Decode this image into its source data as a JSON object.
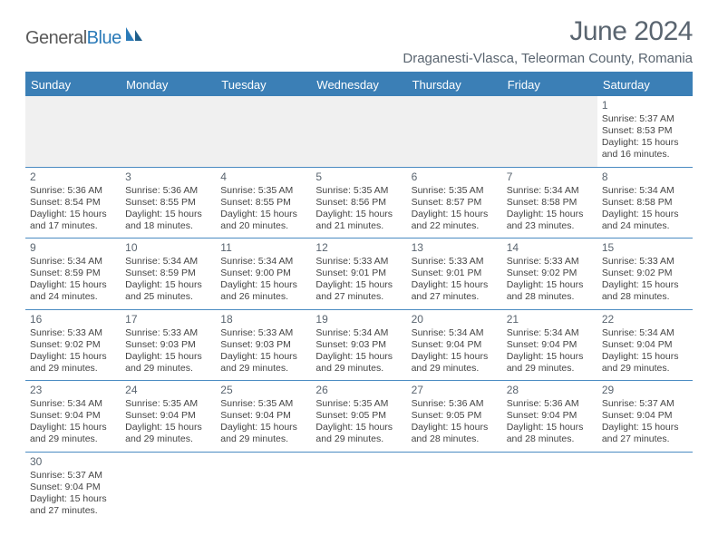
{
  "brand": {
    "general": "General",
    "blue": "Blue"
  },
  "title": "June 2024",
  "location": "Draganesti-Vlasca, Teleorman County, Romania",
  "colors": {
    "header_bg": "#3b7fb6",
    "header_text": "#ffffff",
    "row_border": "#4a8bc2",
    "body_text": "#444444",
    "title_text": "#5a6570",
    "empty_bg": "#f0f0f0"
  },
  "dow": [
    "Sunday",
    "Monday",
    "Tuesday",
    "Wednesday",
    "Thursday",
    "Friday",
    "Saturday"
  ],
  "weeks": [
    [
      null,
      null,
      null,
      null,
      null,
      null,
      {
        "n": "1",
        "sr": "5:37 AM",
        "ss": "8:53 PM",
        "dl": "15 hours",
        "dm": "and 16 minutes."
      }
    ],
    [
      {
        "n": "2",
        "sr": "5:36 AM",
        "ss": "8:54 PM",
        "dl": "15 hours",
        "dm": "and 17 minutes."
      },
      {
        "n": "3",
        "sr": "5:36 AM",
        "ss": "8:55 PM",
        "dl": "15 hours",
        "dm": "and 18 minutes."
      },
      {
        "n": "4",
        "sr": "5:35 AM",
        "ss": "8:55 PM",
        "dl": "15 hours",
        "dm": "and 20 minutes."
      },
      {
        "n": "5",
        "sr": "5:35 AM",
        "ss": "8:56 PM",
        "dl": "15 hours",
        "dm": "and 21 minutes."
      },
      {
        "n": "6",
        "sr": "5:35 AM",
        "ss": "8:57 PM",
        "dl": "15 hours",
        "dm": "and 22 minutes."
      },
      {
        "n": "7",
        "sr": "5:34 AM",
        "ss": "8:58 PM",
        "dl": "15 hours",
        "dm": "and 23 minutes."
      },
      {
        "n": "8",
        "sr": "5:34 AM",
        "ss": "8:58 PM",
        "dl": "15 hours",
        "dm": "and 24 minutes."
      }
    ],
    [
      {
        "n": "9",
        "sr": "5:34 AM",
        "ss": "8:59 PM",
        "dl": "15 hours",
        "dm": "and 24 minutes."
      },
      {
        "n": "10",
        "sr": "5:34 AM",
        "ss": "8:59 PM",
        "dl": "15 hours",
        "dm": "and 25 minutes."
      },
      {
        "n": "11",
        "sr": "5:34 AM",
        "ss": "9:00 PM",
        "dl": "15 hours",
        "dm": "and 26 minutes."
      },
      {
        "n": "12",
        "sr": "5:33 AM",
        "ss": "9:01 PM",
        "dl": "15 hours",
        "dm": "and 27 minutes."
      },
      {
        "n": "13",
        "sr": "5:33 AM",
        "ss": "9:01 PM",
        "dl": "15 hours",
        "dm": "and 27 minutes."
      },
      {
        "n": "14",
        "sr": "5:33 AM",
        "ss": "9:02 PM",
        "dl": "15 hours",
        "dm": "and 28 minutes."
      },
      {
        "n": "15",
        "sr": "5:33 AM",
        "ss": "9:02 PM",
        "dl": "15 hours",
        "dm": "and 28 minutes."
      }
    ],
    [
      {
        "n": "16",
        "sr": "5:33 AM",
        "ss": "9:02 PM",
        "dl": "15 hours",
        "dm": "and 29 minutes."
      },
      {
        "n": "17",
        "sr": "5:33 AM",
        "ss": "9:03 PM",
        "dl": "15 hours",
        "dm": "and 29 minutes."
      },
      {
        "n": "18",
        "sr": "5:33 AM",
        "ss": "9:03 PM",
        "dl": "15 hours",
        "dm": "and 29 minutes."
      },
      {
        "n": "19",
        "sr": "5:34 AM",
        "ss": "9:03 PM",
        "dl": "15 hours",
        "dm": "and 29 minutes."
      },
      {
        "n": "20",
        "sr": "5:34 AM",
        "ss": "9:04 PM",
        "dl": "15 hours",
        "dm": "and 29 minutes."
      },
      {
        "n": "21",
        "sr": "5:34 AM",
        "ss": "9:04 PM",
        "dl": "15 hours",
        "dm": "and 29 minutes."
      },
      {
        "n": "22",
        "sr": "5:34 AM",
        "ss": "9:04 PM",
        "dl": "15 hours",
        "dm": "and 29 minutes."
      }
    ],
    [
      {
        "n": "23",
        "sr": "5:34 AM",
        "ss": "9:04 PM",
        "dl": "15 hours",
        "dm": "and 29 minutes."
      },
      {
        "n": "24",
        "sr": "5:35 AM",
        "ss": "9:04 PM",
        "dl": "15 hours",
        "dm": "and 29 minutes."
      },
      {
        "n": "25",
        "sr": "5:35 AM",
        "ss": "9:04 PM",
        "dl": "15 hours",
        "dm": "and 29 minutes."
      },
      {
        "n": "26",
        "sr": "5:35 AM",
        "ss": "9:05 PM",
        "dl": "15 hours",
        "dm": "and 29 minutes."
      },
      {
        "n": "27",
        "sr": "5:36 AM",
        "ss": "9:05 PM",
        "dl": "15 hours",
        "dm": "and 28 minutes."
      },
      {
        "n": "28",
        "sr": "5:36 AM",
        "ss": "9:04 PM",
        "dl": "15 hours",
        "dm": "and 28 minutes."
      },
      {
        "n": "29",
        "sr": "5:37 AM",
        "ss": "9:04 PM",
        "dl": "15 hours",
        "dm": "and 27 minutes."
      }
    ],
    [
      {
        "n": "30",
        "sr": "5:37 AM",
        "ss": "9:04 PM",
        "dl": "15 hours",
        "dm": "and 27 minutes."
      },
      null,
      null,
      null,
      null,
      null,
      null
    ]
  ],
  "labels": {
    "sunrise_prefix": "Sunrise: ",
    "sunset_prefix": "Sunset: ",
    "daylight_prefix": "Daylight: "
  }
}
